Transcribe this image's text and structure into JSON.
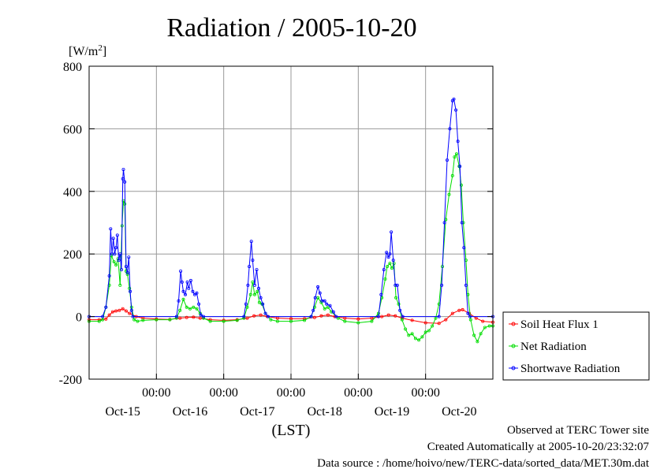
{
  "chart_data": {
    "type": "line",
    "title": "Radiation / 2005-10-20",
    "ylabel_unit_prefix": "[W/m",
    "ylabel_unit_sup": "2",
    "ylabel_unit_suffix": "]",
    "xlabel": "(LST)",
    "ylim": [
      -200,
      800
    ],
    "yticks": [
      -200,
      0,
      200,
      400,
      600,
      800
    ],
    "xlim": [
      0,
      6
    ],
    "x_unit": "days from 2005-10-14 00:00 LST",
    "day_ticks": [
      1,
      2,
      3,
      4,
      5
    ],
    "day_tick_label": "00:00",
    "day_labels": [
      {
        "x": 0.5,
        "label": "Oct-15"
      },
      {
        "x": 1.5,
        "label": "Oct-16"
      },
      {
        "x": 2.5,
        "label": "Oct-17"
      },
      {
        "x": 3.5,
        "label": "Oct-18"
      },
      {
        "x": 4.5,
        "label": "Oct-19"
      },
      {
        "x": 5.5,
        "label": "Oct-20"
      }
    ],
    "grid": true,
    "legend_position": "right",
    "series": [
      {
        "name": "Soil Heat Flux 1",
        "color": "#ff0000",
        "points": [
          [
            0.0,
            -10
          ],
          [
            0.15,
            -10
          ],
          [
            0.25,
            -8
          ],
          [
            0.3,
            5
          ],
          [
            0.35,
            15
          ],
          [
            0.4,
            18
          ],
          [
            0.45,
            20
          ],
          [
            0.5,
            25
          ],
          [
            0.55,
            18
          ],
          [
            0.6,
            10
          ],
          [
            0.7,
            0
          ],
          [
            0.8,
            -5
          ],
          [
            1.0,
            -8
          ],
          [
            1.2,
            -9
          ],
          [
            1.35,
            -5
          ],
          [
            1.45,
            -3
          ],
          [
            1.55,
            -2
          ],
          [
            1.65,
            -5
          ],
          [
            1.8,
            -10
          ],
          [
            2.0,
            -12
          ],
          [
            2.2,
            -10
          ],
          [
            2.35,
            -5
          ],
          [
            2.45,
            2
          ],
          [
            2.55,
            5
          ],
          [
            2.65,
            0
          ],
          [
            2.8,
            -5
          ],
          [
            3.0,
            -7
          ],
          [
            3.2,
            -7
          ],
          [
            3.35,
            -3
          ],
          [
            3.45,
            2
          ],
          [
            3.55,
            5
          ],
          [
            3.65,
            0
          ],
          [
            3.8,
            -5
          ],
          [
            4.0,
            -8
          ],
          [
            4.2,
            -5
          ],
          [
            4.35,
            0
          ],
          [
            4.45,
            5
          ],
          [
            4.55,
            2
          ],
          [
            4.65,
            -5
          ],
          [
            4.8,
            -12
          ],
          [
            5.0,
            -20
          ],
          [
            5.2,
            -22
          ],
          [
            5.3,
            -10
          ],
          [
            5.4,
            10
          ],
          [
            5.5,
            20
          ],
          [
            5.55,
            22
          ],
          [
            5.65,
            10
          ],
          [
            5.75,
            -5
          ],
          [
            5.85,
            -15
          ],
          [
            6.0,
            -18
          ]
        ]
      },
      {
        "name": "Net Radiation",
        "color": "#00dd00",
        "points": [
          [
            0.0,
            -15
          ],
          [
            0.15,
            -15
          ],
          [
            0.2,
            -10
          ],
          [
            0.25,
            30
          ],
          [
            0.3,
            100
          ],
          [
            0.33,
            195
          ],
          [
            0.37,
            175
          ],
          [
            0.4,
            165
          ],
          [
            0.43,
            185
          ],
          [
            0.46,
            100
          ],
          [
            0.49,
            290
          ],
          [
            0.51,
            370
          ],
          [
            0.53,
            360
          ],
          [
            0.55,
            145
          ],
          [
            0.57,
            135
          ],
          [
            0.6,
            90
          ],
          [
            0.63,
            30
          ],
          [
            0.67,
            -10
          ],
          [
            0.72,
            -15
          ],
          [
            0.8,
            -12
          ],
          [
            1.0,
            -10
          ],
          [
            1.2,
            -10
          ],
          [
            1.3,
            -5
          ],
          [
            1.35,
            20
          ],
          [
            1.4,
            55
          ],
          [
            1.45,
            30
          ],
          [
            1.5,
            25
          ],
          [
            1.55,
            30
          ],
          [
            1.6,
            25
          ],
          [
            1.65,
            10
          ],
          [
            1.7,
            -5
          ],
          [
            1.8,
            -15
          ],
          [
            2.0,
            -15
          ],
          [
            2.2,
            -12
          ],
          [
            2.3,
            -5
          ],
          [
            2.35,
            30
          ],
          [
            2.4,
            70
          ],
          [
            2.43,
            110
          ],
          [
            2.46,
            70
          ],
          [
            2.5,
            80
          ],
          [
            2.53,
            45
          ],
          [
            2.57,
            40
          ],
          [
            2.62,
            10
          ],
          [
            2.7,
            -10
          ],
          [
            2.8,
            -15
          ],
          [
            3.0,
            -15
          ],
          [
            3.2,
            -12
          ],
          [
            3.3,
            0
          ],
          [
            3.35,
            30
          ],
          [
            3.4,
            60
          ],
          [
            3.45,
            45
          ],
          [
            3.5,
            25
          ],
          [
            3.55,
            30
          ],
          [
            3.6,
            15
          ],
          [
            3.7,
            -5
          ],
          [
            3.8,
            -15
          ],
          [
            4.0,
            -20
          ],
          [
            4.2,
            -15
          ],
          [
            4.3,
            10
          ],
          [
            4.35,
            60
          ],
          [
            4.4,
            120
          ],
          [
            4.43,
            160
          ],
          [
            4.47,
            170
          ],
          [
            4.5,
            155
          ],
          [
            4.53,
            170
          ],
          [
            4.56,
            60
          ],
          [
            4.6,
            40
          ],
          [
            4.65,
            -10
          ],
          [
            4.7,
            -40
          ],
          [
            4.75,
            -60
          ],
          [
            4.8,
            -55
          ],
          [
            4.85,
            -70
          ],
          [
            4.9,
            -75
          ],
          [
            4.95,
            -65
          ],
          [
            5.0,
            -50
          ],
          [
            5.05,
            -45
          ],
          [
            5.1,
            -30
          ],
          [
            5.15,
            -5
          ],
          [
            5.2,
            40
          ],
          [
            5.25,
            160
          ],
          [
            5.3,
            310
          ],
          [
            5.35,
            390
          ],
          [
            5.4,
            450
          ],
          [
            5.43,
            510
          ],
          [
            5.46,
            520
          ],
          [
            5.5,
            480
          ],
          [
            5.53,
            420
          ],
          [
            5.56,
            300
          ],
          [
            5.6,
            180
          ],
          [
            5.63,
            70
          ],
          [
            5.67,
            -10
          ],
          [
            5.72,
            -60
          ],
          [
            5.77,
            -80
          ],
          [
            5.82,
            -55
          ],
          [
            5.88,
            -35
          ],
          [
            5.95,
            -30
          ],
          [
            6.0,
            -30
          ]
        ]
      },
      {
        "name": "Shortwave Radiation",
        "color": "#0000ff",
        "points": [
          [
            0.0,
            0
          ],
          [
            0.2,
            0
          ],
          [
            0.25,
            30
          ],
          [
            0.3,
            130
          ],
          [
            0.32,
            280
          ],
          [
            0.34,
            200
          ],
          [
            0.36,
            250
          ],
          [
            0.38,
            200
          ],
          [
            0.4,
            220
          ],
          [
            0.42,
            260
          ],
          [
            0.44,
            180
          ],
          [
            0.46,
            200
          ],
          [
            0.48,
            150
          ],
          [
            0.5,
            440
          ],
          [
            0.51,
            470
          ],
          [
            0.53,
            430
          ],
          [
            0.55,
            160
          ],
          [
            0.57,
            140
          ],
          [
            0.59,
            190
          ],
          [
            0.61,
            80
          ],
          [
            0.63,
            20
          ],
          [
            0.65,
            0
          ],
          [
            1.3,
            0
          ],
          [
            1.33,
            50
          ],
          [
            1.36,
            145
          ],
          [
            1.38,
            110
          ],
          [
            1.4,
            80
          ],
          [
            1.43,
            70
          ],
          [
            1.46,
            110
          ],
          [
            1.48,
            90
          ],
          [
            1.51,
            115
          ],
          [
            1.54,
            80
          ],
          [
            1.57,
            70
          ],
          [
            1.6,
            75
          ],
          [
            1.63,
            40
          ],
          [
            1.66,
            5
          ],
          [
            1.7,
            0
          ],
          [
            2.3,
            0
          ],
          [
            2.33,
            40
          ],
          [
            2.36,
            100
          ],
          [
            2.38,
            160
          ],
          [
            2.41,
            240
          ],
          [
            2.43,
            180
          ],
          [
            2.46,
            100
          ],
          [
            2.49,
            150
          ],
          [
            2.52,
            90
          ],
          [
            2.55,
            60
          ],
          [
            2.58,
            40
          ],
          [
            2.62,
            10
          ],
          [
            2.66,
            0
          ],
          [
            3.3,
            0
          ],
          [
            3.33,
            20
          ],
          [
            3.36,
            60
          ],
          [
            3.4,
            95
          ],
          [
            3.43,
            75
          ],
          [
            3.46,
            50
          ],
          [
            3.5,
            50
          ],
          [
            3.53,
            40
          ],
          [
            3.58,
            35
          ],
          [
            3.63,
            15
          ],
          [
            3.67,
            0
          ],
          [
            4.3,
            0
          ],
          [
            4.34,
            70
          ],
          [
            4.38,
            150
          ],
          [
            4.42,
            205
          ],
          [
            4.45,
            190
          ],
          [
            4.47,
            200
          ],
          [
            4.49,
            270
          ],
          [
            4.52,
            180
          ],
          [
            4.55,
            100
          ],
          [
            4.58,
            100
          ],
          [
            4.62,
            20
          ],
          [
            4.66,
            0
          ],
          [
            5.2,
            0
          ],
          [
            5.24,
            100
          ],
          [
            5.28,
            300
          ],
          [
            5.32,
            500
          ],
          [
            5.36,
            600
          ],
          [
            5.4,
            690
          ],
          [
            5.42,
            695
          ],
          [
            5.45,
            660
          ],
          [
            5.48,
            560
          ],
          [
            5.51,
            480
          ],
          [
            5.54,
            300
          ],
          [
            5.57,
            220
          ],
          [
            5.6,
            100
          ],
          [
            5.63,
            10
          ],
          [
            5.66,
            0
          ],
          [
            6.0,
            0
          ]
        ]
      }
    ]
  },
  "footer": {
    "line1": "Observed at TERC Tower site",
    "line2": "Created Automatically at 2005-10-20/23:32:07",
    "line3": "Data source : /home/hoivo/new/TERC-data/sorted_data/MET.30m.dat"
  }
}
